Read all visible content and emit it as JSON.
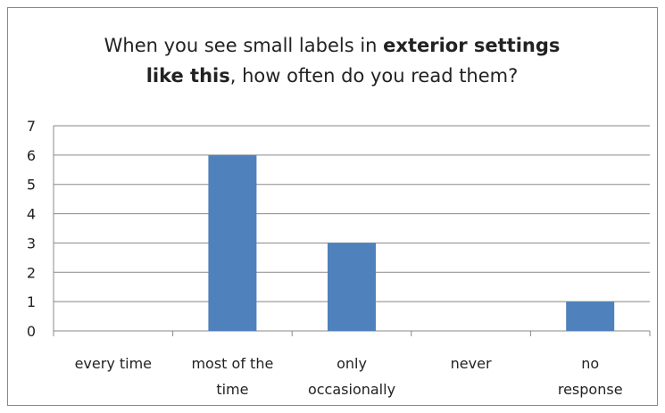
{
  "chart_data": {
    "type": "bar",
    "title": [
      [
        {
          "text": "When you see small labels in ",
          "bold": false
        },
        {
          "text": "exterior settings",
          "bold": true
        }
      ],
      [
        {
          "text": "like this",
          "bold": true
        },
        {
          "text": ", how often do you read them?",
          "bold": false
        }
      ]
    ],
    "categories": [
      [
        "every time"
      ],
      [
        "most of the",
        "time"
      ],
      [
        "only",
        "occasionally"
      ],
      [
        "never"
      ],
      [
        "no",
        "response"
      ]
    ],
    "values": [
      0,
      6,
      3,
      0,
      1
    ],
    "color": "#4f81bd",
    "ylim": [
      0,
      7
    ],
    "yticks": [
      0,
      1,
      2,
      3,
      4,
      5,
      6,
      7
    ],
    "grid": true
  }
}
